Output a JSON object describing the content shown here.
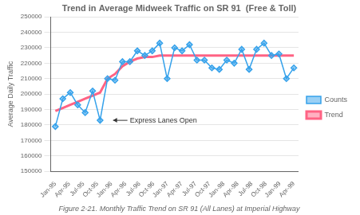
{
  "chart_data": {
    "type": "line",
    "title": "Trend in Average Midweek Traffic on SR 91  (Free & Toll)",
    "ylabel": "Average Daily Traffic",
    "caption": "Figure 2-21. Monthly Traffic Trend on SR 91 (All Lanes) at Imperial Highway",
    "x": [
      0,
      1.59375,
      3.1875,
      4.78125,
      6.375,
      7.96875,
      9.5625,
      11.15625,
      12.75,
      14.34375,
      15.9375,
      17.53125,
      19.125,
      20.71875,
      22.3125,
      23.90625,
      25.5,
      27.09375,
      28.6875,
      30.28125,
      31.875,
      33.46875,
      35.0625,
      36.65625,
      38.25,
      39.84375,
      41.4375,
      43.03125,
      44.625,
      46.21875,
      47.8125,
      49.40625,
      51
    ],
    "xlim": [
      -1,
      52
    ],
    "xticks": [
      {
        "value": 0,
        "label": "Jan-95"
      },
      {
        "value": 3,
        "label": "Apr-95"
      },
      {
        "value": 6,
        "label": "Jul-95"
      },
      {
        "value": 9,
        "label": "Oct-95"
      },
      {
        "value": 12,
        "label": "Jan-96"
      },
      {
        "value": 15,
        "label": "Apr-96"
      },
      {
        "value": 18,
        "label": "Jul-96"
      },
      {
        "value": 21,
        "label": "Oct-96"
      },
      {
        "value": 24,
        "label": "Jan-97"
      },
      {
        "value": 27,
        "label": "Apr-97"
      },
      {
        "value": 30,
        "label": "Jul-97"
      },
      {
        "value": 33,
        "label": "Oct-97"
      },
      {
        "value": 36,
        "label": "Jan-98"
      },
      {
        "value": 39,
        "label": "Apr-98"
      },
      {
        "value": 42,
        "label": "Jul-98"
      },
      {
        "value": 45,
        "label": "Oct-98"
      },
      {
        "value": 48,
        "label": "Jan-99"
      },
      {
        "value": 51,
        "label": "Apr-99"
      }
    ],
    "ylim": [
      150000,
      250000
    ],
    "yticks": [
      150000,
      160000,
      170000,
      180000,
      190000,
      200000,
      210000,
      220000,
      230000,
      240000,
      250000
    ],
    "series": [
      {
        "name": "Counts",
        "marker": "diamond",
        "values": [
          179000,
          197000,
          201000,
          193000,
          188000,
          202000,
          183000,
          210000,
          209000,
          221000,
          221000,
          228000,
          225000,
          228000,
          233000,
          210000,
          230000,
          228000,
          232000,
          222000,
          222000,
          217000,
          216000,
          222000,
          220000,
          229000,
          216000,
          229000,
          233000,
          225000,
          226000,
          210000,
          217000
        ]
      },
      {
        "name": "Trend",
        "marker": "none",
        "values": [
          189000,
          191000,
          193000,
          195000,
          197000,
          199000,
          201000,
          210000,
          213000,
          218000,
          221000,
          223000,
          224000,
          224000,
          225000,
          225000,
          225000,
          225000,
          225000,
          225000,
          225000,
          225000,
          225000,
          225000,
          225000,
          225000,
          225000,
          225000,
          225000,
          225000,
          225000,
          225000,
          225000
        ]
      }
    ],
    "annotations": [
      {
        "text": "Express Lanes Open",
        "x": 12,
        "y": 183000
      }
    ],
    "grid": "y",
    "legend": "right"
  }
}
